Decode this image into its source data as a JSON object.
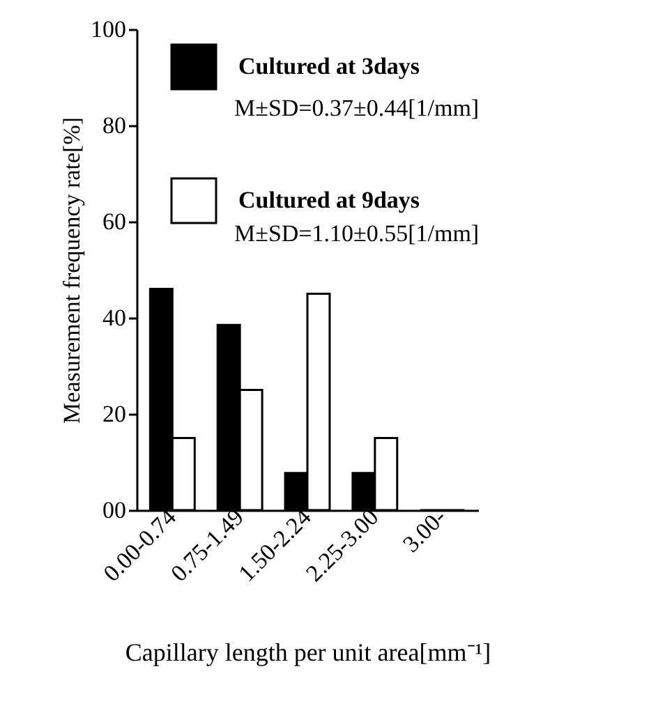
{
  "chart_data": {
    "type": "bar",
    "xlabel": "Capillary length per unit area[mm⁻¹]",
    "ylabel": "Measurement frequency rate[%]",
    "categories": [
      "0.00-0.74",
      "0.75-1.49",
      "1.50-2.24",
      "2.25-3.00",
      "3.00-"
    ],
    "series": [
      {
        "name": "Cultured at 3days",
        "color": "#000000",
        "values": [
          46,
          38.5,
          7.7,
          7.7,
          0
        ]
      },
      {
        "name": "Cultured at 9days",
        "color": "#ffffff",
        "values": [
          15,
          25,
          45,
          15,
          0
        ]
      }
    ],
    "annotations": [
      "M±SD=0.37±0.44[1/mm]",
      "M±SD=1.10±0.55[1/mm]"
    ],
    "ylim": [
      0,
      100
    ],
    "yticks": [
      {
        "value": 0,
        "label": "00"
      },
      20,
      40,
      60,
      80,
      100
    ],
    "grid": false,
    "legend": "top left"
  }
}
